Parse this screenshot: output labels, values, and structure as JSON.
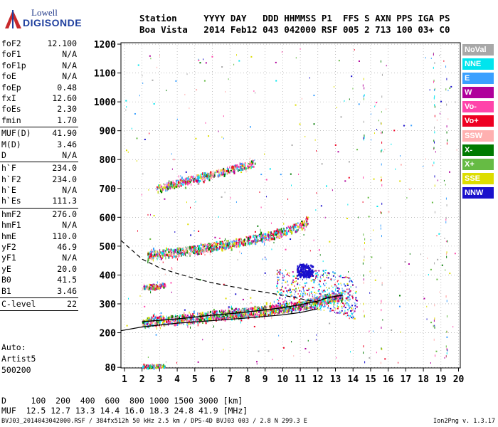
{
  "logo": {
    "line1": "Lowell",
    "line2": "DIGISONDE"
  },
  "header": {
    "labels": [
      "Station",
      "YYYY",
      "DAY",
      "DDD",
      "HHMMSS",
      "P1",
      "FFS",
      "S",
      "AXN",
      "PPS",
      "IGA",
      "PS"
    ],
    "values": [
      "Boa Vista",
      "2014",
      "Feb12",
      "043",
      "042000",
      "RSF",
      "005",
      "2",
      "713",
      "100",
      "03+",
      "C0"
    ]
  },
  "params": [
    [
      {
        "name": "foF2",
        "value": "12.100"
      },
      {
        "name": "foF1",
        "value": "N/A"
      },
      {
        "name": "foF1p",
        "value": "N/A"
      },
      {
        "name": "foE",
        "value": "N/A"
      },
      {
        "name": "foEp",
        "value": "0.48"
      },
      {
        "name": "fxI",
        "value": "12.60"
      },
      {
        "name": "foEs",
        "value": "2.30"
      },
      {
        "name": "fmin",
        "value": "1.70"
      }
    ],
    [
      {
        "name": "MUF(D)",
        "value": "41.90"
      },
      {
        "name": "M(D)",
        "value": "3.46"
      },
      {
        "name": "D",
        "value": "N/A"
      }
    ],
    [
      {
        "name": "h`F",
        "value": "234.0"
      },
      {
        "name": "h`F2",
        "value": "234.0"
      },
      {
        "name": "h`E",
        "value": "N/A"
      },
      {
        "name": "h`Es",
        "value": "111.3"
      }
    ],
    [
      {
        "name": "hmF2",
        "value": "276.0"
      },
      {
        "name": "hmF1",
        "value": "N/A"
      },
      {
        "name": "hmE",
        "value": "110.0"
      },
      {
        "name": "yF2",
        "value": "46.9"
      },
      {
        "name": "yF1",
        "value": "N/A"
      },
      {
        "name": "yE",
        "value": "20.0"
      },
      {
        "name": "B0",
        "value": "41.5"
      },
      {
        "name": "B1",
        "value": "3.46"
      }
    ],
    [
      {
        "name": "C-level",
        "value": "22"
      }
    ]
  ],
  "auto": {
    "l1": "Auto:",
    "l2": "Artist5",
    "l3": "500200"
  },
  "legend": [
    {
      "label": "NoVal",
      "color": "#a8a8a8"
    },
    {
      "label": "NNE",
      "color": "#00e5ee"
    },
    {
      "label": "E",
      "color": "#3aa0ff"
    },
    {
      "label": "W",
      "color": "#b0009b"
    },
    {
      "label": "Vo-",
      "color": "#ff44aa"
    },
    {
      "label": "Vo+",
      "color": "#ee0022"
    },
    {
      "label": "SSW",
      "color": "#ffb0b0"
    },
    {
      "label": "X-",
      "color": "#007a00"
    },
    {
      "label": "X+",
      "color": "#66bb44"
    },
    {
      "label": "SSE",
      "color": "#dddd00"
    },
    {
      "label": "NNW",
      "color": "#1a10cc"
    }
  ],
  "d_table": {
    "d_label": "D",
    "d_values": [
      "100",
      "200",
      "400",
      "600",
      "800",
      "1000",
      "1500",
      "3000"
    ],
    "d_unit": "[km]",
    "muf_label": "MUF",
    "muf_values": [
      "12.5",
      "12.7",
      "13.3",
      "14.4",
      "16.0",
      "18.3",
      "24.8",
      "41.9"
    ],
    "muf_unit": "[MHz]"
  },
  "footer": "BVJ03_2014043042000.RSF / 384fx512h 50 kHz 2.5 km / DPS-4D BVJ03 003 / 2.8 N 299.3 E",
  "version": "Ion2Png v. 1.3.17",
  "chart_data": {
    "type": "scatter",
    "title": "",
    "xlabel": "",
    "ylabel": "",
    "xlim": [
      0.8,
      20.1
    ],
    "ylim": [
      78,
      1205
    ],
    "x_ticks": [
      1,
      2,
      3,
      4,
      5,
      6,
      7,
      8,
      9,
      10,
      11,
      12,
      13,
      14,
      15,
      16,
      17,
      18,
      19,
      20
    ],
    "y_ticks": [
      80,
      200,
      300,
      400,
      500,
      600,
      700,
      800,
      900,
      1000,
      1100,
      1200
    ],
    "grid": "dotted",
    "legend_position": "right",
    "series": [
      {
        "name": "F trace",
        "x": [
          2.0,
          3.0,
          4.0,
          5.0,
          6.0,
          7.0,
          8.0,
          9.0,
          10.0,
          11.0,
          12.0,
          12.6,
          13.4
        ],
        "y": [
          238,
          243,
          248,
          254,
          261,
          266,
          272,
          279,
          287,
          297,
          310,
          322,
          330
        ]
      },
      {
        "name": "2F trace",
        "x": [
          2.3,
          3.0,
          4.0,
          5.0,
          6.0,
          7.0,
          8.0,
          9.0,
          10.0,
          11.0,
          11.4
        ],
        "y": [
          470,
          475,
          482,
          491,
          500,
          511,
          522,
          535,
          552,
          573,
          590
        ]
      },
      {
        "name": "3F trace",
        "x": [
          2.8,
          3.5,
          4.5,
          5.5,
          6.5,
          7.5,
          8.4
        ],
        "y": [
          700,
          712,
          728,
          744,
          758,
          775,
          790
        ]
      },
      {
        "name": "Es trace",
        "x": [
          2.0,
          2.5,
          3.0,
          3.3
        ],
        "y": [
          86,
          86,
          87,
          87
        ]
      },
      {
        "name": "2Es trace",
        "x": [
          2.0,
          2.5,
          3.0,
          3.3
        ],
        "y": [
          360,
          362,
          365,
          368
        ]
      },
      {
        "name": "Spread F",
        "x": [
          9.6,
          10.2,
          10.8,
          11.0,
          11.4
        ],
        "y": [
          400,
          410,
          420,
          430,
          415
        ]
      },
      {
        "name": "Solid profile",
        "x": [
          0.8,
          2.0,
          4.0,
          6.0,
          8.0,
          10.0,
          11.0,
          12.0
        ],
        "y": [
          207,
          220,
          233,
          242,
          251,
          262,
          270,
          283
        ]
      },
      {
        "name": "Dashed profile",
        "x": [
          0.8,
          2.0,
          3.0,
          4.0,
          5.0,
          6.0,
          7.0,
          8.0,
          9.0,
          10.0,
          11.0,
          12.0
        ],
        "y": [
          520,
          455,
          425,
          405,
          388,
          373,
          361,
          350,
          340,
          330,
          318,
          305
        ]
      }
    ]
  }
}
